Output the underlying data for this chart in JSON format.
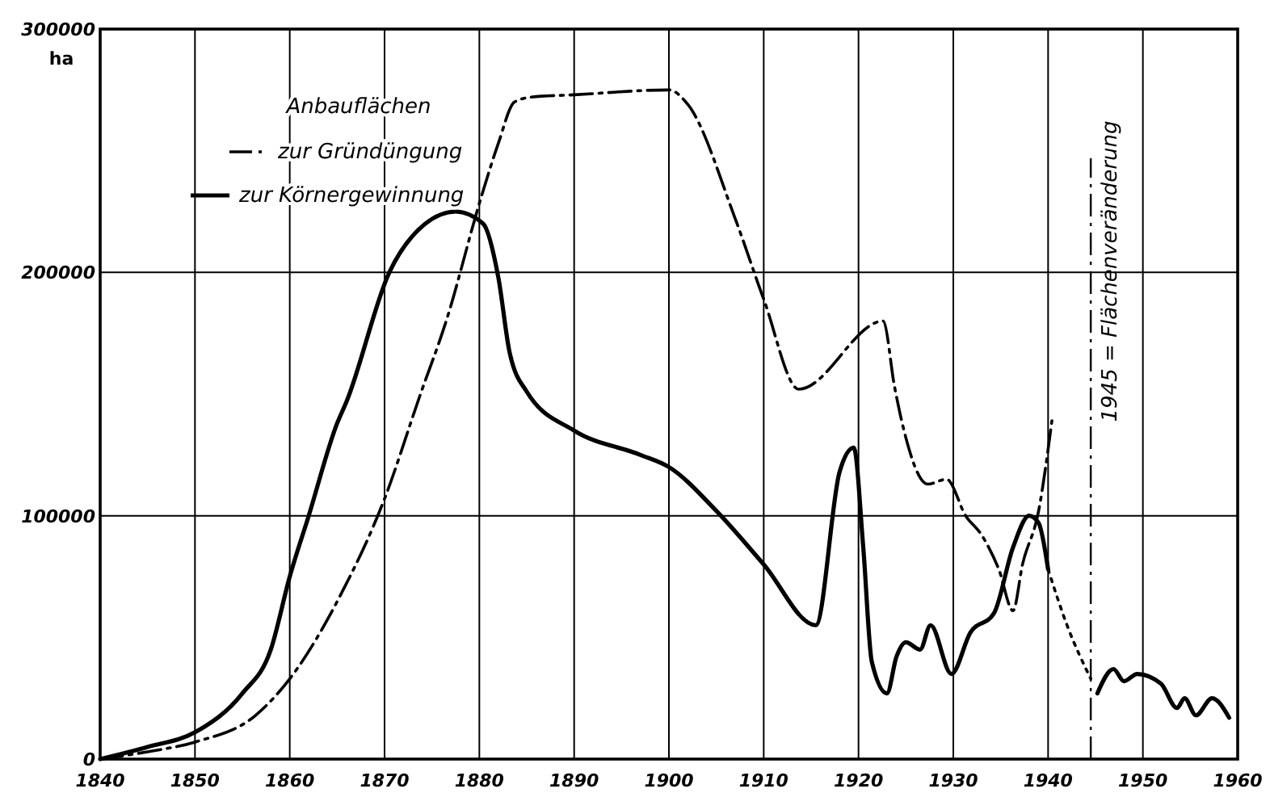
{
  "chart_data": {
    "type": "line",
    "ylabel": "ha",
    "legend_title": "Anbauflächen",
    "legend": "top left",
    "marker": "none",
    "grid": true,
    "xlim": [
      1840,
      1960
    ],
    "xticks": [
      1840,
      1850,
      1860,
      1870,
      1880,
      1890,
      1900,
      1910,
      1920,
      1930,
      1940,
      1950,
      {
        "value": 1960,
        "label": "1960"
      }
    ],
    "ylim": [
      0,
      300000
    ],
    "yticks": [
      0,
      100000,
      200000,
      300000
    ],
    "series": [
      {
        "name": "zur Gründüngung",
        "color": "#000000",
        "line_style": "dashed",
        "x": [
          1840,
          1845,
          1850,
          1856.4,
          1860,
          1865.3,
          1870,
          1873.7,
          1876.5,
          1880.2,
          1882,
          1883.7,
          1885.4,
          1890,
          1900,
          1902,
          1907,
          1910,
          1913.7,
          1922.6,
          1923.8,
          1924.8,
          1927.3,
          1929.3,
          1931.3,
          1933,
          1934.8,
          1936.3,
          1937.3,
          1939,
          1940.4
        ],
        "values": [
          0,
          3000,
          7000,
          18000,
          33000,
          67000,
          107000,
          149000,
          180000,
          231000,
          253000,
          270000,
          272000,
          273000,
          275000,
          269000,
          222000,
          189000,
          152000,
          180000,
          153000,
          135000,
          113000,
          115000,
          100000,
          92000,
          78000,
          61000,
          80000,
          102000,
          139000
        ]
      },
      {
        "name": "zur Körnergewinnung",
        "color": "#000000",
        "line_style": "solid",
        "x": [
          1840,
          1845,
          1850,
          1855,
          1858,
          1860,
          1862,
          1865,
          1866,
          1870.5,
          1874.3,
          1877.5,
          1880.4,
          1882,
          1883.2,
          1885,
          1890,
          1897,
          1900,
          1905,
          1910,
          1915.5,
          1918,
          1919.5,
          1920.5,
          1921.4,
          1923,
          1924,
          1925,
          1926.5,
          1927.6,
          1929.8,
          1931.8,
          1934.3,
          1936.3,
          1938,
          1939,
          1940
        ],
        "values": [
          0,
          5000,
          11000,
          27000,
          45000,
          75000,
          100000,
          138000,
          147000,
          200000,
          220000,
          225000,
          220000,
          198000,
          167000,
          151000,
          135000,
          125000,
          120000,
          102000,
          80000,
          55000,
          118000,
          128000,
          87000,
          40000,
          27000,
          42000,
          48000,
          45000,
          55000,
          35000,
          52000,
          60000,
          87000,
          100000,
          97000,
          78000
        ]
      },
      {
        "color": "#000000",
        "line_style": "dotted",
        "x": [
          1940,
          1942,
          1944.5
        ],
        "values": [
          78000,
          55000,
          33000
        ]
      },
      {
        "color": "#000000",
        "line_style": "solid",
        "x": [
          1945.2,
          1946.9,
          1948,
          1949.4,
          1951.9,
          1953.6,
          1954.4,
          1955.6,
          1957.3,
          1959.1
        ],
        "values": [
          27000,
          37000,
          32000,
          35000,
          31000,
          21000,
          25000,
          18000,
          25000,
          17000
        ]
      }
    ],
    "ref_lines": [
      {
        "axis": "x",
        "value": 1944.5,
        "label": "1945 = Flächenveränderung",
        "line_style": "dashed"
      }
    ]
  }
}
